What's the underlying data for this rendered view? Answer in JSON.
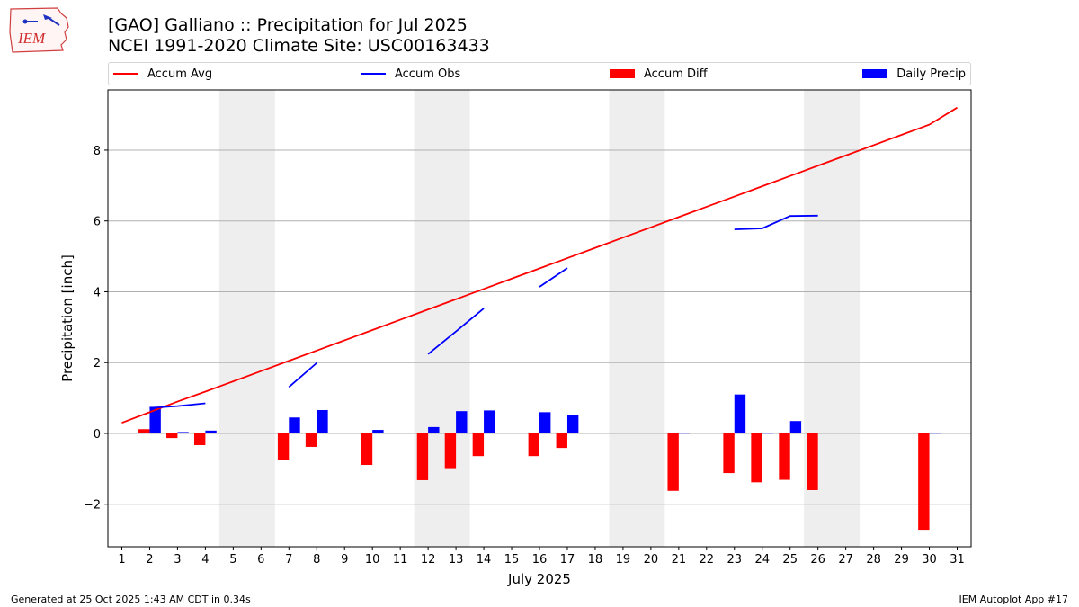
{
  "header": {
    "logo_text": "IEM",
    "title_line1": "[GAO] Galliano :: Precipitation for Jul 2025",
    "title_line2": "NCEI 1991-2020 Climate Site: USC00163433"
  },
  "colors": {
    "accum_avg": "#ff0000",
    "accum_obs": "#0000ff",
    "accum_diff": "#ff0000",
    "daily_precip": "#0000ff",
    "weekend_shade": "#eeeeee",
    "grid": "#b0b0b0"
  },
  "chart_data": {
    "type": "bar",
    "title": "[GAO] Galliano :: Precipitation for Jul 2025",
    "subtitle": "NCEI 1991-2020 Climate Site: USC00163433",
    "xlabel": "July 2025",
    "ylabel": "Precipitation [inch]",
    "xlim": [
      0.5,
      31.5
    ],
    "ylim": [
      -3.2,
      9.7
    ],
    "yticks": [
      -2,
      0,
      2,
      4,
      6,
      8
    ],
    "ytick_labels": [
      "−2",
      "0",
      "2",
      "4",
      "6",
      "8"
    ],
    "grid": "horizontal",
    "legend_position": "top",
    "days": [
      1,
      2,
      3,
      4,
      5,
      6,
      7,
      8,
      9,
      10,
      11,
      12,
      13,
      14,
      15,
      16,
      17,
      18,
      19,
      20,
      21,
      22,
      23,
      24,
      25,
      26,
      27,
      28,
      29,
      30,
      31
    ],
    "weekend_spans": [
      [
        5,
        6
      ],
      [
        12,
        13
      ],
      [
        19,
        20
      ],
      [
        26,
        27
      ]
    ],
    "series": [
      {
        "name": "Accum Avg",
        "kind": "line",
        "points": [
          [
            1,
            0.3
          ],
          [
            2,
            0.6
          ],
          [
            3,
            0.9
          ],
          [
            4,
            1.18
          ],
          [
            5,
            1.47
          ],
          [
            6,
            1.76
          ],
          [
            7,
            2.05
          ],
          [
            8,
            2.34
          ],
          [
            9,
            2.63
          ],
          [
            10,
            2.92
          ],
          [
            11,
            3.21
          ],
          [
            12,
            3.5
          ],
          [
            13,
            3.79
          ],
          [
            14,
            4.08
          ],
          [
            15,
            4.37
          ],
          [
            16,
            4.66
          ],
          [
            17,
            4.95
          ],
          [
            18,
            5.24
          ],
          [
            19,
            5.53
          ],
          [
            20,
            5.82
          ],
          [
            21,
            6.11
          ],
          [
            22,
            6.4
          ],
          [
            23,
            6.69
          ],
          [
            24,
            6.98
          ],
          [
            25,
            7.27
          ],
          [
            26,
            7.56
          ],
          [
            27,
            7.85
          ],
          [
            28,
            8.14
          ],
          [
            29,
            8.43
          ],
          [
            30,
            8.72
          ],
          [
            31,
            9.2
          ]
        ]
      },
      {
        "name": "Accum Obs",
        "kind": "segments",
        "segments": [
          [
            [
              2,
              0.72
            ],
            [
              3,
              0.77
            ],
            [
              4,
              0.85
            ]
          ],
          [
            [
              7,
              1.31
            ],
            [
              8,
              1.99
            ]
          ],
          [
            [
              12,
              2.24
            ],
            [
              13,
              2.88
            ],
            [
              14,
              3.53
            ]
          ],
          [
            [
              16,
              4.14
            ],
            [
              17,
              4.67
            ]
          ],
          [
            [
              23,
              5.76
            ],
            [
              24,
              5.79
            ],
            [
              25,
              6.14
            ],
            [
              26,
              6.15
            ]
          ]
        ]
      },
      {
        "name": "Accum Diff",
        "kind": "bar",
        "points": [
          [
            2,
            0.12
          ],
          [
            3,
            -0.13
          ],
          [
            4,
            -0.33
          ],
          [
            7,
            -0.76
          ],
          [
            8,
            -0.38
          ],
          [
            10,
            -0.89
          ],
          [
            12,
            -1.32
          ],
          [
            13,
            -0.98
          ],
          [
            14,
            -0.64
          ],
          [
            16,
            -0.64
          ],
          [
            17,
            -0.41
          ],
          [
            21,
            -1.62
          ],
          [
            23,
            -1.12
          ],
          [
            24,
            -1.38
          ],
          [
            25,
            -1.31
          ],
          [
            26,
            -1.6
          ],
          [
            30,
            -2.72
          ]
        ]
      },
      {
        "name": "Daily Precip",
        "kind": "bar",
        "points": [
          [
            2,
            0.75
          ],
          [
            3,
            0.04
          ],
          [
            4,
            0.08
          ],
          [
            7,
            0.45
          ],
          [
            8,
            0.66
          ],
          [
            10,
            0.1
          ],
          [
            12,
            0.18
          ],
          [
            13,
            0.63
          ],
          [
            14,
            0.65
          ],
          [
            16,
            0.6
          ],
          [
            17,
            0.52
          ],
          [
            21,
            0.02
          ],
          [
            23,
            1.1
          ],
          [
            24,
            0.02
          ],
          [
            25,
            0.35
          ],
          [
            30,
            0.02
          ]
        ]
      }
    ]
  },
  "legend": [
    {
      "label": "Accum Avg",
      "swatch": "line",
      "color": "#ff0000"
    },
    {
      "label": "Accum Obs",
      "swatch": "line",
      "color": "#0000ff"
    },
    {
      "label": "Accum Diff",
      "swatch": "box",
      "color": "#ff0000"
    },
    {
      "label": "Daily Precip",
      "swatch": "box",
      "color": "#0000ff"
    }
  ],
  "footer": {
    "generated": "Generated at 25 Oct 2025 1:43 AM CDT in 0.34s",
    "app": "IEM Autoplot App #17"
  }
}
